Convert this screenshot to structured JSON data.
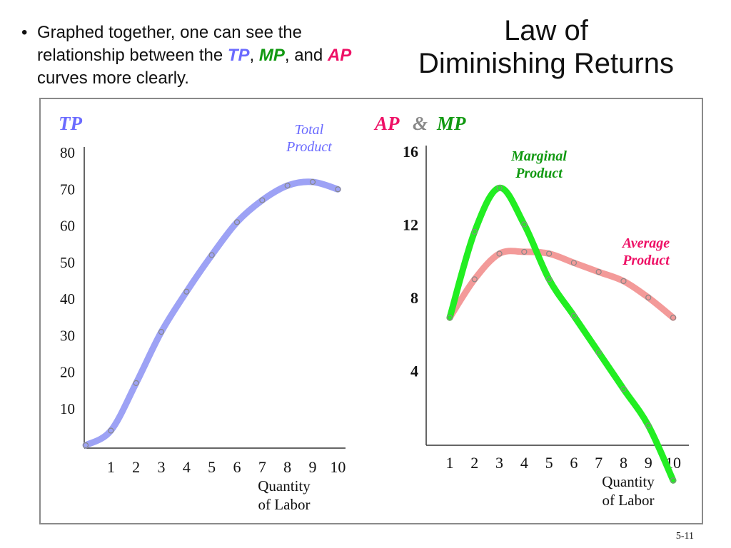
{
  "bullet": {
    "prefix": "Graphed together, one can see the relationship between the",
    "tp": "TP",
    "sep1": ",",
    "mp": "MP",
    "sep2": ", and",
    "ap": "AP",
    "suffix": "curves more clearly."
  },
  "title_line1": "Law of",
  "title_line2": "Diminishing Returns",
  "slide_number": "5-11",
  "colors": {
    "tp_curve": "#9da2f5",
    "mp_curve": "#22ee22",
    "ap_curve": "#f39a99",
    "tp_text": "#6b6bff",
    "mp_text": "#119911",
    "ap_text": "#ee1166"
  },
  "chart_data": [
    {
      "type": "line",
      "title": "TP",
      "xlabel": "Quantity of Labor",
      "ylabel": "",
      "x_ticks": [
        "1",
        "2",
        "3",
        "4",
        "5",
        "6",
        "7",
        "8",
        "9",
        "10"
      ],
      "y_ticks": [
        "10",
        "20",
        "30",
        "40",
        "50",
        "60",
        "70",
        "80"
      ],
      "series": [
        {
          "name": "Total Product",
          "label_lines": [
            "Total",
            "Product"
          ],
          "points": [
            [
              0,
              0
            ],
            [
              1,
              4
            ],
            [
              2,
              17
            ],
            [
              3,
              31
            ],
            [
              4,
              42
            ],
            [
              5,
              52
            ],
            [
              6,
              61
            ],
            [
              7,
              67
            ],
            [
              8,
              71
            ],
            [
              9,
              72
            ],
            [
              10,
              70
            ]
          ]
        }
      ],
      "xlim": [
        0,
        10.5
      ],
      "ylim": [
        0,
        80
      ]
    },
    {
      "type": "line",
      "title_parts": [
        "AP",
        "&",
        "MP"
      ],
      "xlabel": "Quantity of Labor",
      "ylabel": "",
      "x_ticks": [
        "1",
        "2",
        "3",
        "4",
        "5",
        "6",
        "7",
        "8",
        "9",
        "10"
      ],
      "y_ticks": [
        "4",
        "8",
        "12",
        "16"
      ],
      "series": [
        {
          "name": "Marginal Product",
          "label_lines": [
            "Marginal",
            "Product"
          ],
          "points": [
            [
              1,
              6.9
            ],
            [
              2,
              11.6
            ],
            [
              3,
              14
            ],
            [
              4,
              12
            ],
            [
              5,
              9
            ],
            [
              6,
              7
            ],
            [
              7,
              5
            ],
            [
              8,
              3
            ],
            [
              9,
              1
            ],
            [
              10,
              -2
            ]
          ]
        },
        {
          "name": "Average Product",
          "label_lines": [
            "Average",
            "Product"
          ],
          "points": [
            [
              1,
              6.9
            ],
            [
              2,
              9
            ],
            [
              3,
              10.4
            ],
            [
              4,
              10.5
            ],
            [
              5,
              10.4
            ],
            [
              6,
              9.9
            ],
            [
              7,
              9.4
            ],
            [
              8,
              8.9
            ],
            [
              9,
              8
            ],
            [
              10,
              6.9
            ]
          ]
        }
      ],
      "xlim": [
        0.5,
        10.5
      ],
      "ylim": [
        0,
        16
      ]
    }
  ]
}
